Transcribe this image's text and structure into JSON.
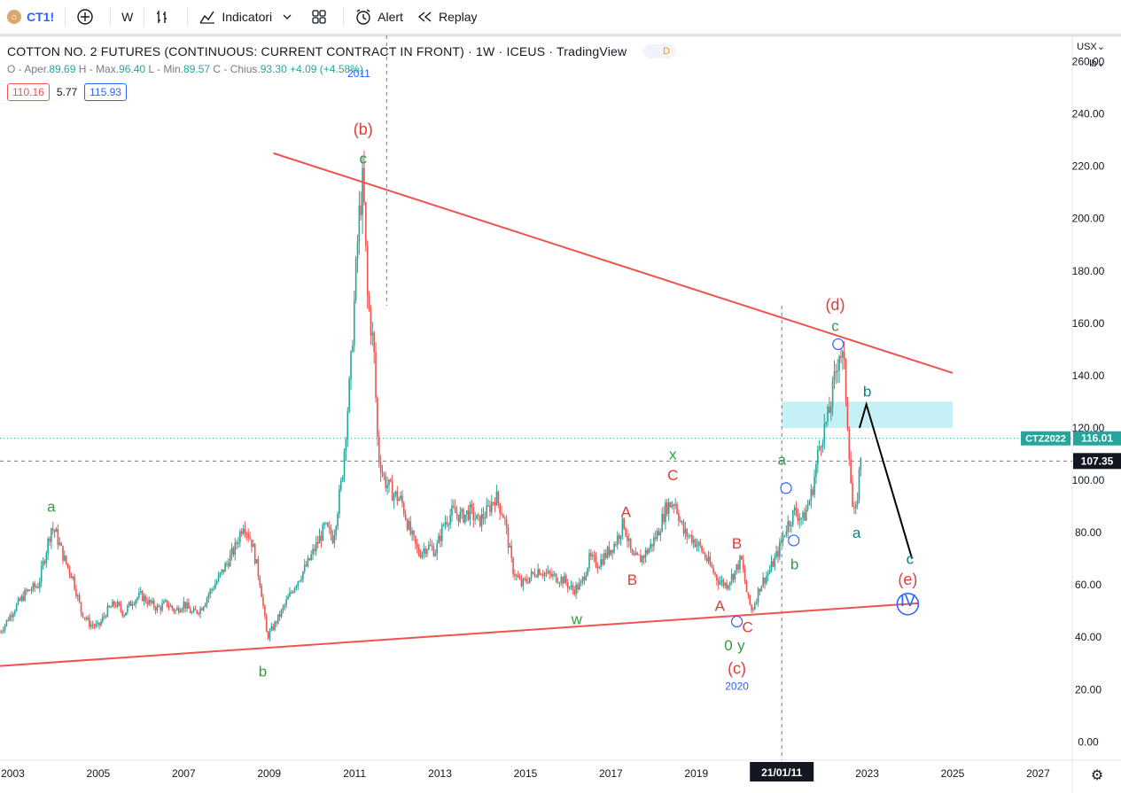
{
  "toolbar": {
    "symbol": "CT1!",
    "interval": "W",
    "indicators_label": "Indicatori",
    "alert_label": "Alert",
    "replay_label": "Replay"
  },
  "legend": {
    "title": "COTTON NO. 2 FUTURES (CONTINUOUS: CURRENT CONTRACT IN FRONT) · 1W · ICEUS · TradingView",
    "d_badge": "D",
    "o_label": "O - Aper.",
    "o_val": "89.69",
    "h_label": "H - Max.",
    "h_val": "96.40",
    "l_label": "L - Min.",
    "l_val": "89.57",
    "c_label": "C - Chius.",
    "c_val": "93.30",
    "change": "+4.09 (+4.58%)",
    "bid": "110.16",
    "spread": "5.77",
    "ask": "115.93"
  },
  "scale": {
    "currency": "USX",
    "unit": "lb"
  },
  "colors": {
    "up": "#26a69a",
    "down": "#ef5350",
    "trendline": "#ef5350",
    "zone": "#b2ebf2",
    "wave_green": "#2e9e44",
    "wave_red": "#e53935",
    "wave_blue": "#2962ff"
  },
  "chart_data": {
    "type": "candlestick",
    "title": "COTTON NO. 2 FUTURES (CONTINUOUS: CURRENT CONTRACT IN FRONT)",
    "interval": "1W",
    "ylim": [
      -7,
      270
    ],
    "yticks": [
      0,
      20,
      40,
      60,
      80,
      100,
      120,
      140,
      160,
      180,
      200,
      220,
      240,
      260
    ],
    "ytick_labels": [
      "0.00",
      "20.00",
      "40.00",
      "60.00",
      "80.00",
      "100.00",
      "120.00",
      "140.00",
      "160.00",
      "180.00",
      "200.00",
      "220.00",
      "240.00",
      "260.00"
    ],
    "xlim": [
      2002.7,
      2027.8
    ],
    "xticks": [
      2003,
      2005,
      2007,
      2009,
      2011,
      2013,
      2015,
      2017,
      2019,
      2023,
      2025,
      2027
    ],
    "xtick_labels": [
      "2003",
      "2005",
      "2007",
      "2009",
      "2011",
      "2013",
      "2015",
      "2017",
      "2019",
      "2023",
      "2025",
      "2027"
    ],
    "cursor": {
      "date_label": "21/01/11",
      "x": 2021.0,
      "price_label": "107.35",
      "price": 107.35
    },
    "ctz_label": "CTZ2022",
    "ctz_price": "116.01",
    "ctz_value": 116.01,
    "price_path": [
      [
        2002.7,
        42
      ],
      [
        2003.0,
        50
      ],
      [
        2003.3,
        57
      ],
      [
        2003.6,
        60
      ],
      [
        2003.9,
        82
      ],
      [
        2004.0,
        80
      ],
      [
        2004.2,
        70
      ],
      [
        2004.4,
        63
      ],
      [
        2004.6,
        50
      ],
      [
        2004.8,
        45
      ],
      [
        2005.0,
        44
      ],
      [
        2005.2,
        50
      ],
      [
        2005.4,
        53
      ],
      [
        2005.6,
        49
      ],
      [
        2005.8,
        54
      ],
      [
        2006.0,
        56
      ],
      [
        2006.2,
        53
      ],
      [
        2006.4,
        51
      ],
      [
        2006.6,
        53
      ],
      [
        2006.8,
        50
      ],
      [
        2007.0,
        53
      ],
      [
        2007.2,
        49
      ],
      [
        2007.4,
        51
      ],
      [
        2007.6,
        57
      ],
      [
        2007.8,
        62
      ],
      [
        2008.0,
        68
      ],
      [
        2008.2,
        74
      ],
      [
        2008.4,
        84
      ],
      [
        2008.6,
        76
      ],
      [
        2008.8,
        60
      ],
      [
        2008.95,
        40
      ],
      [
        2009.1,
        44
      ],
      [
        2009.3,
        50
      ],
      [
        2009.6,
        60
      ],
      [
        2009.9,
        68
      ],
      [
        2010.1,
        75
      ],
      [
        2010.3,
        82
      ],
      [
        2010.5,
        78
      ],
      [
        2010.7,
        100
      ],
      [
        2010.9,
        140
      ],
      [
        2011.1,
        200
      ],
      [
        2011.2,
        215
      ],
      [
        2011.3,
        170
      ],
      [
        2011.45,
        150
      ],
      [
        2011.55,
        110
      ],
      [
        2011.7,
        100
      ],
      [
        2011.9,
        95
      ],
      [
        2012.1,
        92
      ],
      [
        2012.3,
        80
      ],
      [
        2012.5,
        72
      ],
      [
        2012.7,
        75
      ],
      [
        2012.9,
        73
      ],
      [
        2013.1,
        84
      ],
      [
        2013.3,
        88
      ],
      [
        2013.5,
        86
      ],
      [
        2013.7,
        88
      ],
      [
        2013.9,
        84
      ],
      [
        2014.1,
        88
      ],
      [
        2014.3,
        94
      ],
      [
        2014.5,
        86
      ],
      [
        2014.7,
        66
      ],
      [
        2014.9,
        60
      ],
      [
        2015.1,
        63
      ],
      [
        2015.3,
        66
      ],
      [
        2015.5,
        64
      ],
      [
        2015.7,
        63
      ],
      [
        2015.9,
        62
      ],
      [
        2016.1,
        58
      ],
      [
        2016.3,
        60
      ],
      [
        2016.5,
        70
      ],
      [
        2016.7,
        68
      ],
      [
        2016.9,
        72
      ],
      [
        2017.1,
        76
      ],
      [
        2017.3,
        84
      ],
      [
        2017.5,
        70
      ],
      [
        2017.7,
        70
      ],
      [
        2017.9,
        74
      ],
      [
        2018.1,
        80
      ],
      [
        2018.3,
        90
      ],
      [
        2018.5,
        92
      ],
      [
        2018.7,
        80
      ],
      [
        2018.9,
        78
      ],
      [
        2019.1,
        74
      ],
      [
        2019.3,
        68
      ],
      [
        2019.5,
        62
      ],
      [
        2019.7,
        60
      ],
      [
        2019.9,
        65
      ],
      [
        2020.05,
        70
      ],
      [
        2020.2,
        55
      ],
      [
        2020.3,
        50
      ],
      [
        2020.5,
        60
      ],
      [
        2020.7,
        65
      ],
      [
        2020.9,
        72
      ],
      [
        2021.1,
        82
      ],
      [
        2021.3,
        88
      ],
      [
        2021.5,
        85
      ],
      [
        2021.7,
        95
      ],
      [
        2021.9,
        115
      ],
      [
        2022.1,
        125
      ],
      [
        2022.25,
        140
      ],
      [
        2022.35,
        150
      ],
      [
        2022.45,
        145
      ],
      [
        2022.55,
        120
      ],
      [
        2022.65,
        90
      ],
      [
        2022.72,
        85
      ],
      [
        2022.8,
        100
      ],
      [
        2022.85,
        110
      ]
    ],
    "trendlines": [
      {
        "from": [
          2009.1,
          225
        ],
        "to": [
          2025.0,
          141
        ]
      },
      {
        "from": [
          2002.7,
          29
        ],
        "to": [
          2024.2,
          53
        ]
      }
    ],
    "forecast_path": [
      [
        2022.82,
        120
      ],
      [
        2022.98,
        129
      ],
      [
        2024.05,
        70
      ]
    ],
    "zone": {
      "x0": 2021.0,
      "x1": 2025.0,
      "y0": 120,
      "y1": 130
    },
    "wave_labels": [
      {
        "text": "a",
        "x": 2003.9,
        "y": 88,
        "color": "green"
      },
      {
        "text": "b",
        "x": 2008.85,
        "y": 25,
        "color": "green"
      },
      {
        "text": "(b)",
        "x": 2011.2,
        "y": 232,
        "color": "red"
      },
      {
        "text": "c",
        "x": 2011.2,
        "y": 221,
        "color": "green"
      },
      {
        "text": "2011",
        "x": 2011.1,
        "y": 254,
        "color": "blue"
      },
      {
        "text": "w",
        "x": 2016.2,
        "y": 45,
        "color": "green"
      },
      {
        "text": "A",
        "x": 2017.35,
        "y": 86,
        "color": "red"
      },
      {
        "text": "B",
        "x": 2017.5,
        "y": 60,
        "color": "red"
      },
      {
        "text": "x",
        "x": 2018.45,
        "y": 108,
        "color": "green"
      },
      {
        "text": "C",
        "x": 2018.45,
        "y": 100,
        "color": "red"
      },
      {
        "text": "B",
        "x": 2019.95,
        "y": 74,
        "color": "red"
      },
      {
        "text": "A",
        "x": 2019.55,
        "y": 50,
        "color": "red"
      },
      {
        "text": "C",
        "x": 2020.2,
        "y": 42,
        "color": "red"
      },
      {
        "text": "0",
        "x": 2019.75,
        "y": 35,
        "color": "green"
      },
      {
        "text": "y",
        "x": 2020.05,
        "y": 35,
        "color": "green"
      },
      {
        "text": "(c)",
        "x": 2019.95,
        "y": 26,
        "color": "red"
      },
      {
        "text": "2020",
        "x": 2019.95,
        "y": 20,
        "color": "blue"
      },
      {
        "text": "a",
        "x": 2021.0,
        "y": 106,
        "color": "green"
      },
      {
        "text": "b",
        "x": 2021.3,
        "y": 66,
        "color": "green"
      },
      {
        "text": "(d)",
        "x": 2022.25,
        "y": 165,
        "color": "red"
      },
      {
        "text": "c",
        "x": 2022.25,
        "y": 157,
        "color": "green"
      },
      {
        "text": "b",
        "x": 2023.0,
        "y": 132,
        "color": "teal"
      },
      {
        "text": "a",
        "x": 2022.75,
        "y": 78,
        "color": "teal"
      },
      {
        "text": "c",
        "x": 2024.0,
        "y": 68,
        "color": "teal"
      },
      {
        "text": "(e)",
        "x": 2023.95,
        "y": 60,
        "color": "red"
      },
      {
        "text": "IV",
        "x": 2023.95,
        "y": 52,
        "color": "blue"
      }
    ],
    "circles": [
      {
        "x": 2019.95,
        "y": 46
      },
      {
        "x": 2021.1,
        "y": 97
      },
      {
        "x": 2021.28,
        "y": 77
      },
      {
        "x": 2022.32,
        "y": 152
      }
    ]
  }
}
